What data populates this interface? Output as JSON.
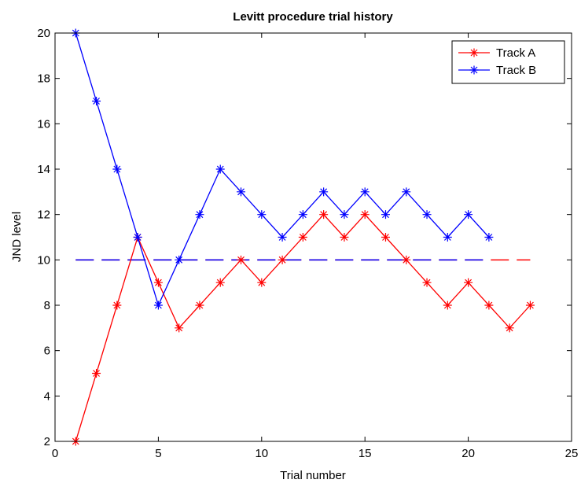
{
  "chart_data": {
    "type": "line",
    "title": "Levitt procedure trial history",
    "xlabel": "Trial number",
    "ylabel": "JND level",
    "xlim": [
      0,
      25
    ],
    "ylim": [
      2,
      20
    ],
    "x_ticks": [
      "0",
      "5",
      "10",
      "15",
      "20",
      "25"
    ],
    "y_ticks": [
      "2",
      "4",
      "6",
      "8",
      "10",
      "12",
      "14",
      "16",
      "18",
      "20"
    ],
    "grid": false,
    "legend_position": "top-right",
    "series": [
      {
        "name": "Track A",
        "color": "#ff0000",
        "marker": "asterisk",
        "x": [
          1,
          2,
          3,
          4,
          5,
          6,
          7,
          8,
          9,
          10,
          11,
          12,
          13,
          14,
          15,
          16,
          17,
          18,
          19,
          20,
          21,
          22,
          23
        ],
        "values": [
          2,
          5,
          8,
          11,
          9,
          7,
          8,
          9,
          10,
          9,
          10,
          11,
          12,
          11,
          12,
          11,
          10,
          9,
          8,
          9,
          8,
          7,
          8
        ]
      },
      {
        "name": "Track B",
        "color": "#0000ff",
        "marker": "asterisk",
        "x": [
          1,
          2,
          3,
          4,
          5,
          6,
          7,
          8,
          9,
          10,
          11,
          12,
          13,
          14,
          15,
          16,
          17,
          18,
          19,
          20,
          21
        ],
        "values": [
          20,
          17,
          14,
          11,
          8,
          10,
          12,
          14,
          13,
          12,
          11,
          12,
          13,
          12,
          13,
          12,
          13,
          12,
          11,
          12,
          11
        ]
      }
    ],
    "reference_lines": [
      {
        "color": "#ff0000",
        "style": "dashed",
        "x": [
          1,
          23
        ],
        "y": 10
      },
      {
        "color": "#0000ff",
        "style": "dashed",
        "x": [
          1,
          21
        ],
        "y": 10
      }
    ]
  }
}
